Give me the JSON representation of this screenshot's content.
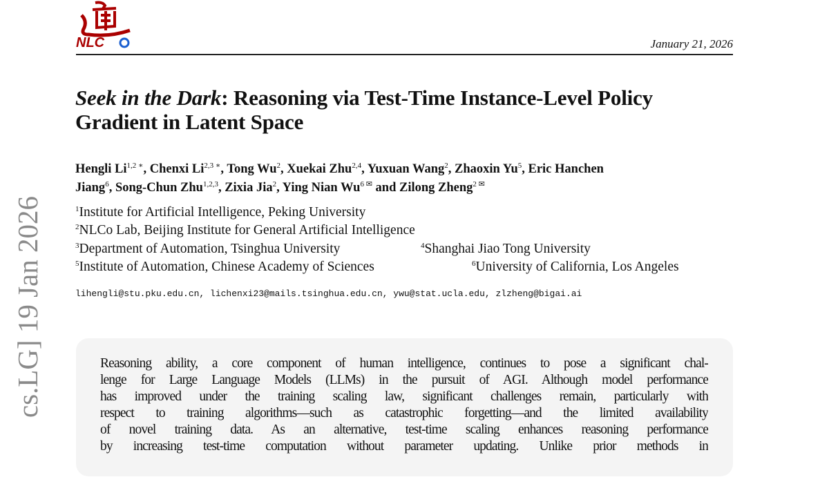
{
  "header": {
    "logo_text": "NLCo",
    "date": "January 21, 2026"
  },
  "arxiv_stamp": "cs.LG]  19 Jan 2026",
  "title": {
    "italic_part": "Seek in the Dark",
    "rest_line1": ": Reasoning via Test-Time Instance-Level Policy",
    "line2": "Gradient in Latent Space"
  },
  "authors": {
    "line1": [
      [
        "Hengli Li",
        "1,2 ∗",
        ", "
      ],
      [
        "Chenxi Li",
        "2,3 ∗",
        ", "
      ],
      [
        "Tong Wu",
        "2",
        ", "
      ],
      [
        "Xuekai Zhu",
        "2,4",
        ", "
      ],
      [
        "Yuxuan Wang",
        "2",
        ", "
      ],
      [
        "Zhaoxin Yu",
        "5",
        ", "
      ],
      [
        "Eric Hanchen",
        "",
        " "
      ]
    ],
    "line2": [
      [
        "Jiang",
        "6",
        ", "
      ],
      [
        "Song-Chun Zhu",
        "1,2,3",
        ", "
      ],
      [
        "Zixia Jia",
        "2",
        ", "
      ],
      [
        "Ying Nian Wu",
        "6 ✉",
        " and "
      ],
      [
        "Zilong Zheng",
        "2 ✉",
        ""
      ]
    ]
  },
  "affiliations": [
    {
      "num": "1",
      "name": "Institute for Artificial Intelligence, Peking University"
    },
    {
      "num": "2",
      "name": "NLCo Lab, Beijing Institute for General Artificial Intelligence"
    },
    {
      "num": "3",
      "name": "Department of Automation, Tsinghua University"
    },
    {
      "num": "4",
      "name": "Shanghai Jiao Tong University"
    },
    {
      "num": "5",
      "name": "Institute of Automation, Chinese Academy of Sciences"
    },
    {
      "num": "6",
      "name": "University of California, Los Angeles"
    }
  ],
  "emails": "lihengli@stu.pku.edu.cn, lichenxi23@mails.tsinghua.edu.cn, ywu@stat.ucla.edu, zlzheng@bigai.ai",
  "abstract_lines": [
    "Reasoning ability, a core component of human intelligence, continues to pose a significant chal-",
    "lenge for Large Language Models (LLMs) in the pursuit of AGI. Although model performance",
    "has improved under the training scaling law, significant challenges remain, particularly with",
    "respect to training algorithms—such as catastrophic forgetting—and the limited availability",
    "of novel training data. As an alternative, test-time scaling enhances reasoning performance",
    "by increasing test-time computation without parameter updating. Unlike prior methods in"
  ]
}
